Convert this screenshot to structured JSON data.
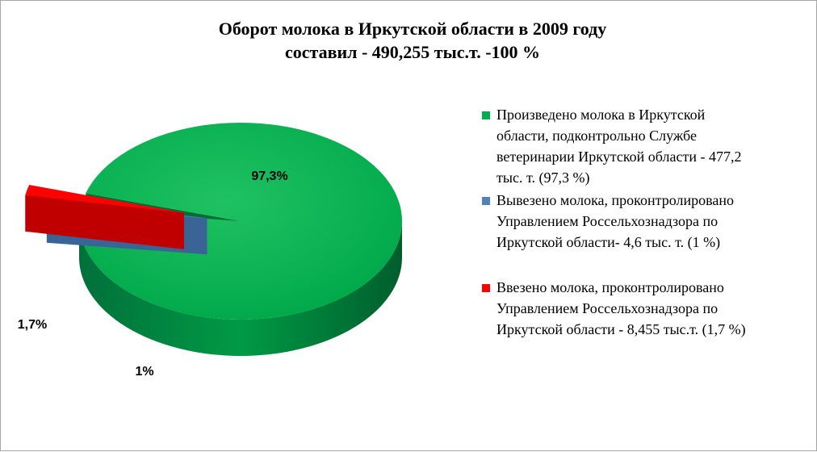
{
  "chart_data": {
    "type": "pie",
    "title": "Оборот молока в Иркутской области в 2009 году",
    "subtitle": "составил - 490,255 тыс.т. -100 %",
    "slices": [
      {
        "label": "Произведено молока в Иркутской\nобласти, подконтрольно Службе\nветеринарии Иркутской области -  477,2\nтыс. т. (97,3 %)",
        "value": 97.3,
        "data_label": "97,3%",
        "color": "#00b050"
      },
      {
        "label": "Вывезено молока, проконтролировано\nУправлением Россельхознадзора по\nИркутской области- 4,6 тыс. т. (1 %)",
        "value": 1.0,
        "data_label": "1%",
        "color": "#4f81bd"
      },
      {
        "label": "Ввезено молока, проконтролировано\nУправлением Россельхознадзора по\nИркутской области - 8,455 тыс.т. (1,7 %)",
        "value": 1.7,
        "data_label": "1,7%",
        "color": "#ff0000"
      }
    ],
    "legend_position": "right",
    "style": "3d-exploded"
  }
}
